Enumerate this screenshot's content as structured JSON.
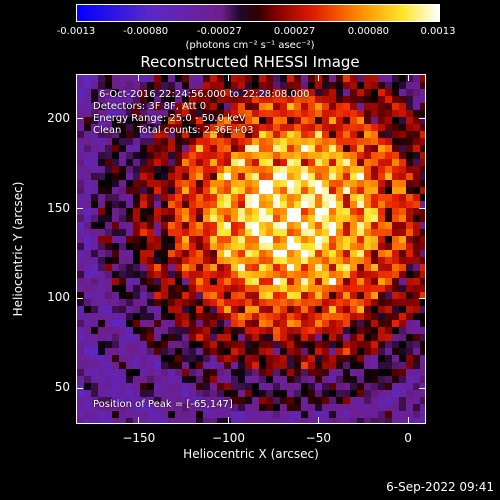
{
  "chart_data": {
    "type": "heatmap",
    "title": "Reconstructed RHESSI Image",
    "xlabel": "Heliocentric X (arcsec)",
    "ylabel": "Heliocentric Y (arcsec)",
    "xlim": [
      -185,
      10
    ],
    "ylim": [
      30,
      225
    ],
    "x_ticks": [
      -150,
      -100,
      -50,
      0
    ],
    "y_ticks": [
      50,
      100,
      150,
      200
    ],
    "peak": [
      -65,
      147
    ],
    "colorbar": {
      "ticks": [
        "-0.0013",
        "-0.00080",
        "-0.00027",
        "0.00027",
        "0.00080",
        "0.0013"
      ],
      "range": [
        -0.0013,
        0.0013
      ],
      "units_label": "(photons cm⁻² s⁻¹ asec⁻²)"
    },
    "annotations": {
      "time_range": "6-Oct-2016 22:24:56.000 to 22:28:08.000",
      "detectors": "Detectors: 3F 8F, Att 0",
      "energy_range": "Energy Range: 25.0 - 50.0 keV",
      "clean_counts": "Clean     Total counts: 2.36E+03",
      "peak_position": "Position of Peak = [-65,147]"
    }
  },
  "footer": {
    "timestamp": "6-Sep-2022 09:41"
  },
  "colors": {
    "background": "#000000",
    "text": "#ffffff"
  }
}
